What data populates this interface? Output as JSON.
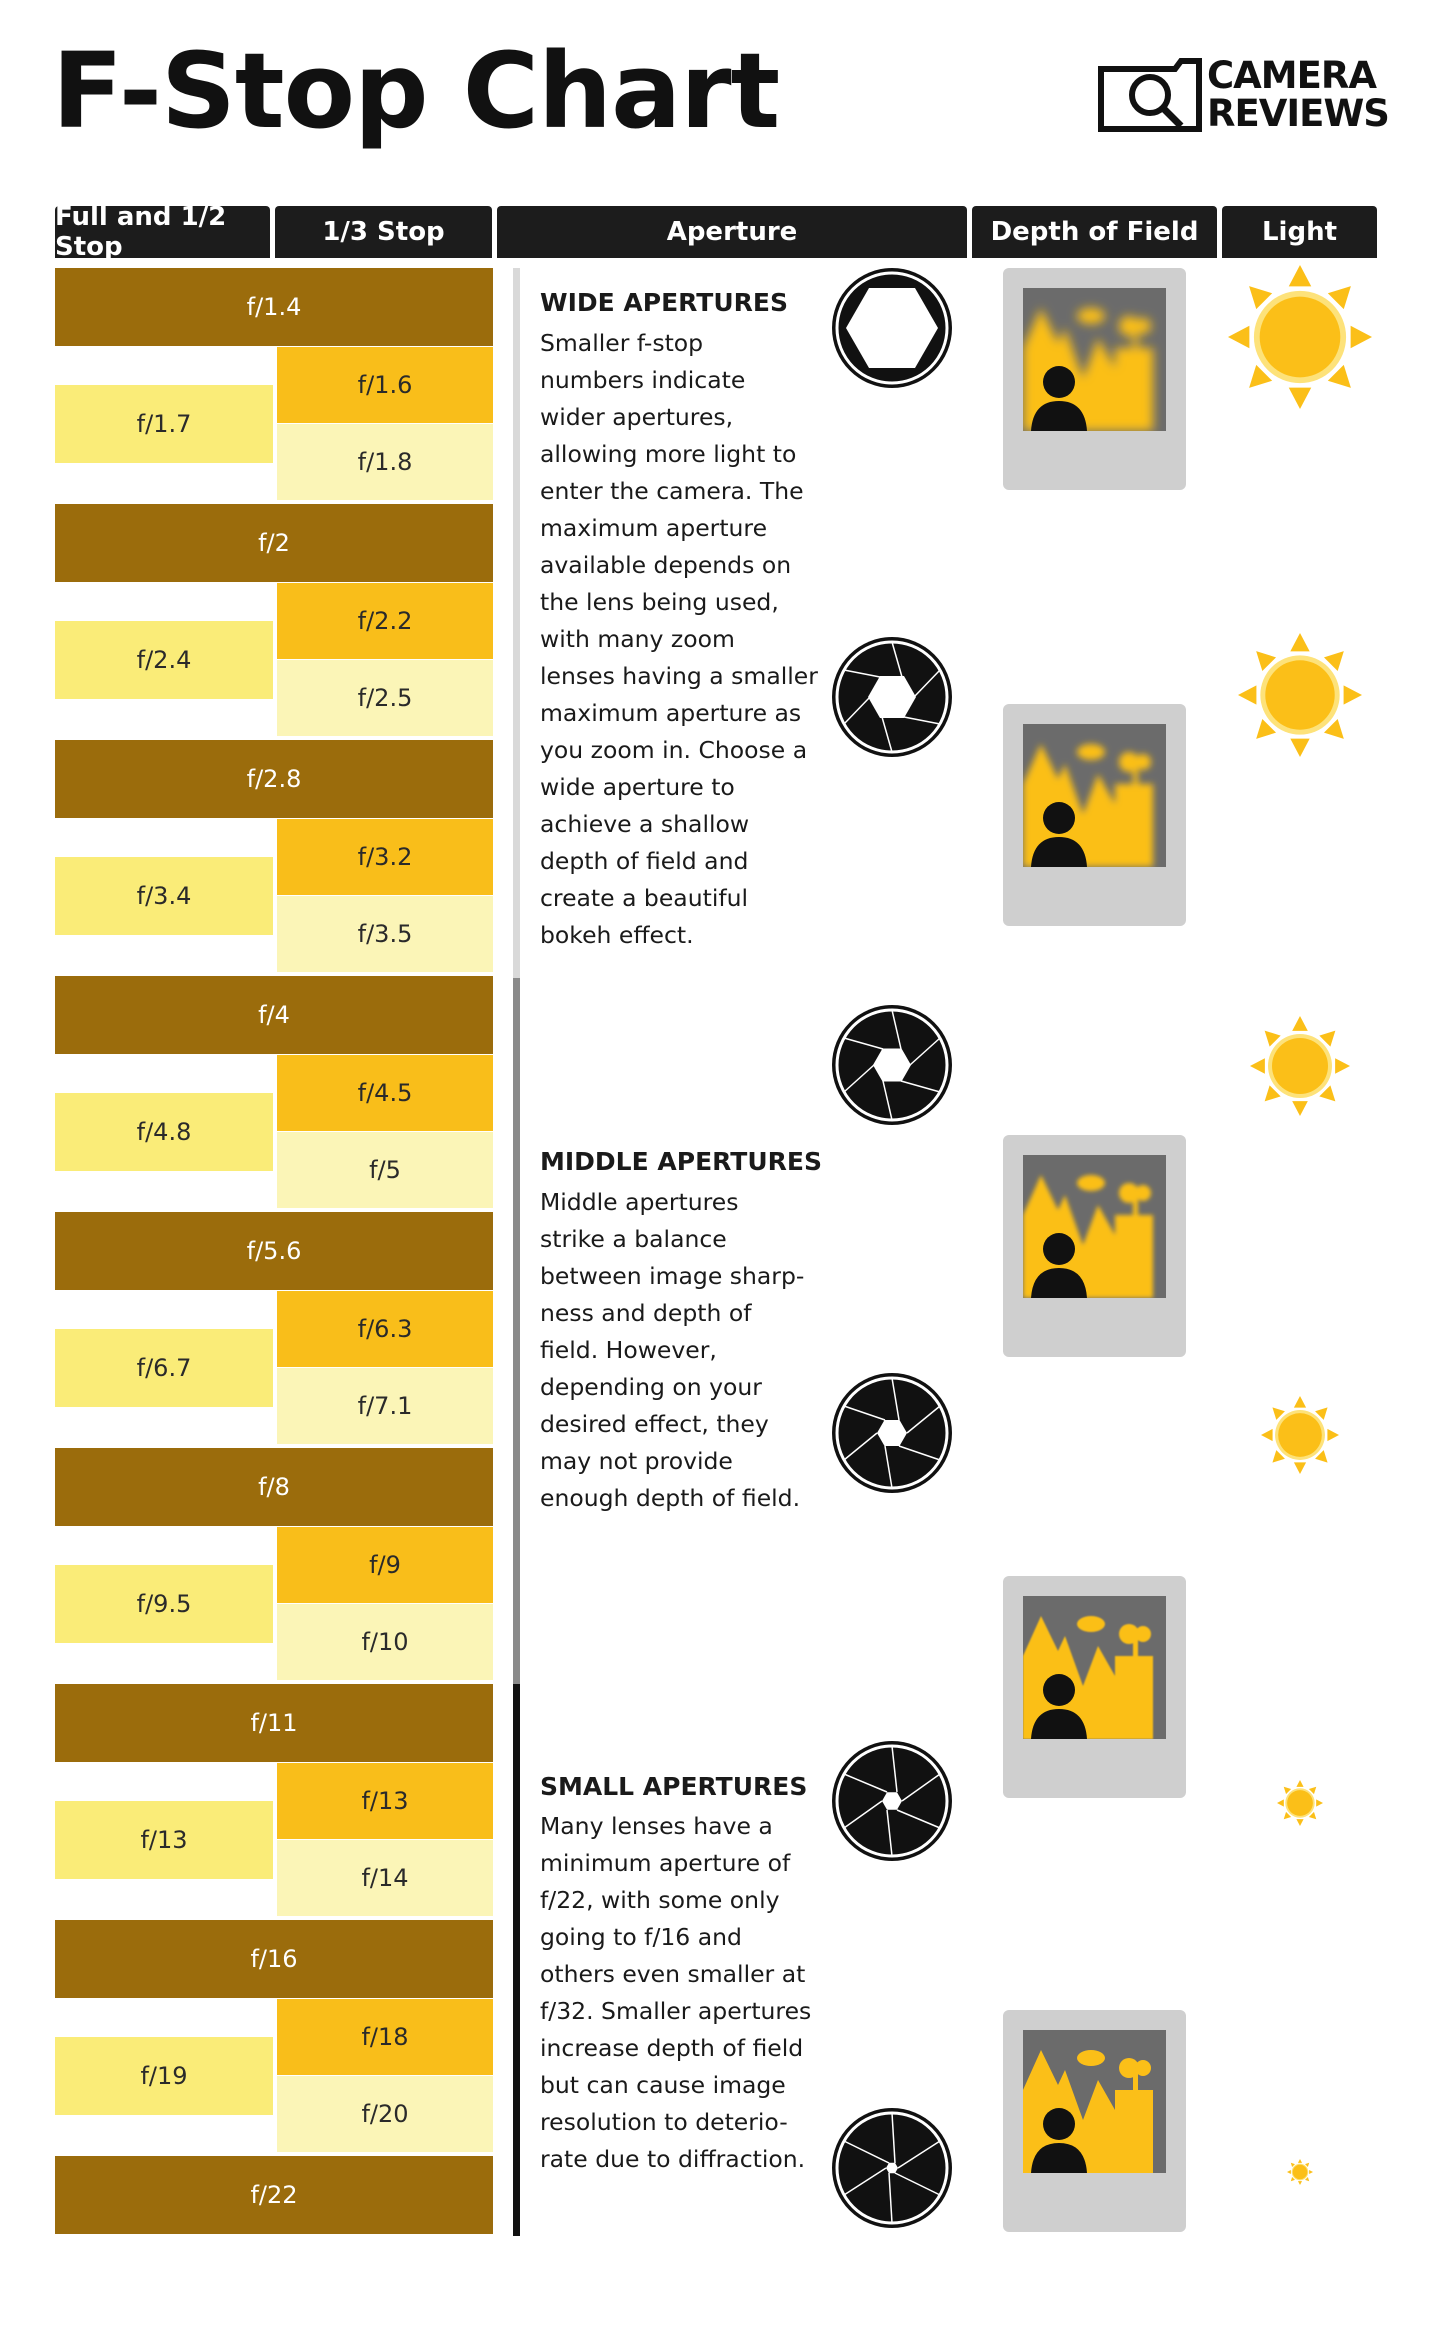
{
  "title": "F-Stop Chart",
  "logo": {
    "line1": "CAMERA",
    "line2": "REVIEWS"
  },
  "headers": {
    "full_half": "Full and 1/2 Stop",
    "third": "1/3 Stop",
    "aperture": "Aperture",
    "dof": "Depth of Field",
    "light": "Light"
  },
  "stops": {
    "full": [
      "f/1.4",
      "f/2",
      "f/2.8",
      "f/4",
      "f/5.6",
      "f/8",
      "f/11",
      "f/16",
      "f/22"
    ],
    "half": [
      "f/1.7",
      "f/2.4",
      "f/3.4",
      "f/4.8",
      "f/6.7",
      "f/9.5",
      "f/13",
      "f/19"
    ],
    "third_a": [
      "f/1.6",
      "f/2.2",
      "f/3.2",
      "f/4.5",
      "f/6.3",
      "f/9",
      "f/13",
      "f/18"
    ],
    "third_b": [
      "f/1.8",
      "f/2.5",
      "f/3.5",
      "f/5",
      "f/7.1",
      "f/10",
      "f/14",
      "f/20"
    ]
  },
  "sections": {
    "wide": {
      "heading": "WIDE APERTURES",
      "lines": [
        "Smaller f-stop",
        "numbers indicate",
        "wider apertures,",
        "allowing more light to",
        "enter the camera. The",
        "maximum aperture",
        "available depends on",
        "the lens being used,",
        "with many zoom",
        "lenses having a smaller",
        "maximum aperture as",
        "you zoom in. Choose a",
        "wide aperture to",
        "achieve a shallow",
        "depth of field and",
        "create a beautiful",
        "bokeh effect."
      ]
    },
    "middle": {
      "heading": "MIDDLE APERTURES",
      "lines": [
        "Middle apertures",
        "strike a balance",
        "between image sharp-",
        "ness and depth of",
        "field. However,",
        "depending on your",
        "desired effect, they",
        "may not provide",
        "enough depth of field."
      ]
    },
    "small": {
      "heading": "SMALL APERTURES",
      "lines": [
        "Many lenses have a",
        "minimum aperture of",
        "f/22, with some only",
        "going to f/16 and",
        "others even smaller at",
        "f/32. Smaller apertures",
        "increase depth of field",
        "but can cause image",
        "resolution to deterio-",
        "rate due to diffraction."
      ]
    }
  },
  "colors": {
    "full": "#9b6c0c",
    "half": "#faec78",
    "third_a": "#f9be1a",
    "third_b": "#fbf5b7",
    "sun": "#fbbf18",
    "header": "#1c1c1c"
  },
  "icons": {
    "aperture": "aperture-blade-icon",
    "dof": "depth-of-field-photo-icon",
    "light": "sun-icon"
  }
}
